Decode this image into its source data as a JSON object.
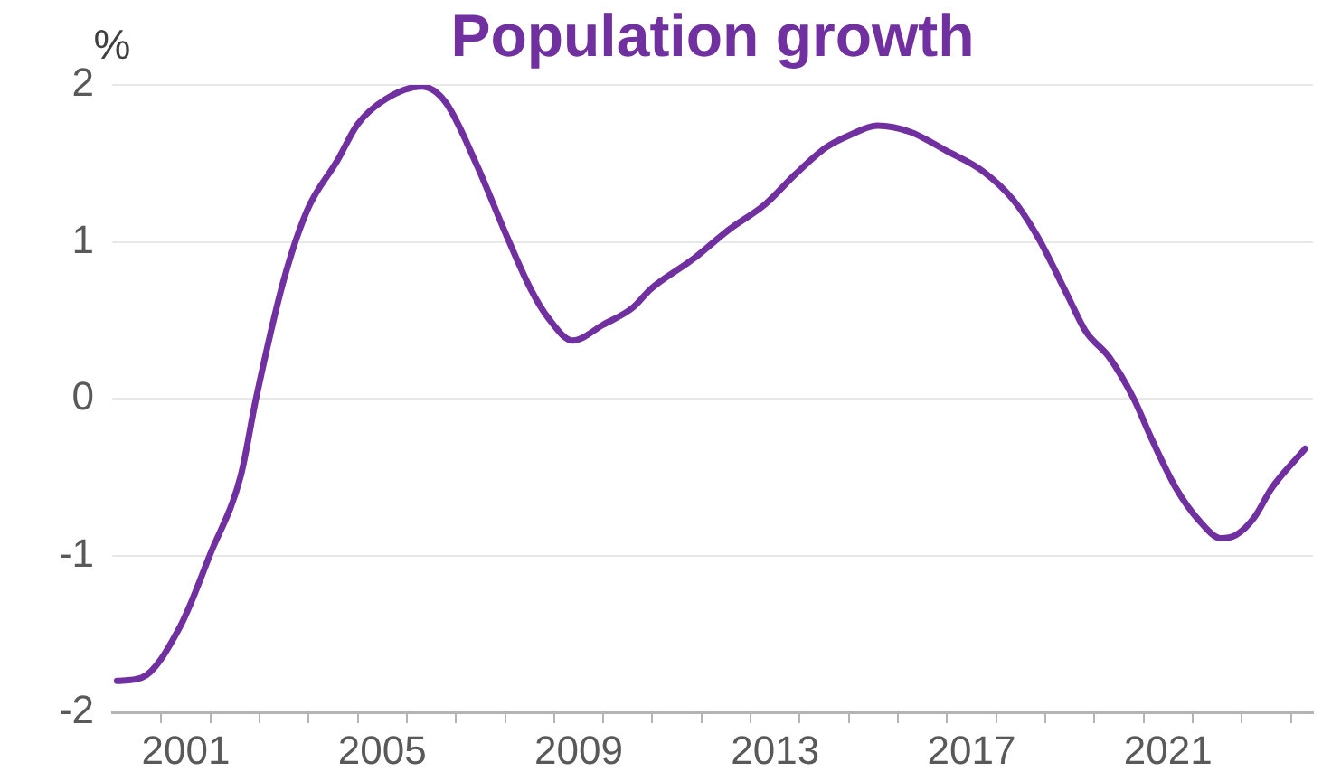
{
  "chart_data": {
    "type": "line",
    "title": "Population growth",
    "ylabel": "%",
    "x": [
      2000.1,
      2000.6,
      2001.39,
      2002.0,
      2002.62,
      2002.93,
      2003.48,
      2003.97,
      2004.59,
      2005.0,
      2005.57,
      2006.3,
      2006.79,
      2007.41,
      2008.03,
      2008.52,
      2008.89,
      2009.38,
      2009.99,
      2010.6,
      2010.97,
      2011.83,
      2012.57,
      2013.3,
      2013.91,
      2014.53,
      2015.02,
      2015.58,
      2016.25,
      2016.99,
      2017.73,
      2018.34,
      2018.83,
      2019.45,
      2019.82,
      2020.31,
      2020.8,
      2021.17,
      2021.66,
      2022.14,
      2022.57,
      2022.88,
      2023.25,
      2023.61,
      2024.29
    ],
    "series": [
      {
        "color": "#7030a0",
        "values": [
          -1.8,
          -1.78,
          -1.45,
          -0.99,
          -0.49,
          0.0,
          0.74,
          1.2,
          1.52,
          1.75,
          1.91,
          1.99,
          1.89,
          1.5,
          1.04,
          0.7,
          0.51,
          0.37,
          0.47,
          0.58,
          0.7,
          0.89,
          1.08,
          1.24,
          1.43,
          1.6,
          1.68,
          1.74,
          1.7,
          1.58,
          1.45,
          1.27,
          1.04,
          0.66,
          0.43,
          0.26,
          0.0,
          -0.26,
          -0.57,
          -0.78,
          -0.89,
          -0.87,
          -0.76,
          -0.57,
          -0.32
        ]
      }
    ],
    "xlim": [
      2000,
      2024.45
    ],
    "xticks": [
      {
        "value": 2001,
        "label": null
      },
      {
        "value": 2001.5,
        "label": "2001"
      },
      {
        "value": 2002,
        "label": null
      },
      {
        "value": 2003,
        "label": null
      },
      {
        "value": 2004,
        "label": null
      },
      {
        "value": 2005,
        "label": null
      },
      {
        "value": 2005.5,
        "label": "2005"
      },
      {
        "value": 2006,
        "label": null
      },
      {
        "value": 2007,
        "label": null
      },
      {
        "value": 2008,
        "label": null
      },
      {
        "value": 2009,
        "label": null
      },
      {
        "value": 2009.5,
        "label": "2009"
      },
      {
        "value": 2010,
        "label": null
      },
      {
        "value": 2011,
        "label": null
      },
      {
        "value": 2012,
        "label": null
      },
      {
        "value": 2013,
        "label": null
      },
      {
        "value": 2013.5,
        "label": "2013"
      },
      {
        "value": 2014,
        "label": null
      },
      {
        "value": 2015,
        "label": null
      },
      {
        "value": 2016,
        "label": null
      },
      {
        "value": 2017,
        "label": null
      },
      {
        "value": 2017.5,
        "label": "2017"
      },
      {
        "value": 2018,
        "label": null
      },
      {
        "value": 2019,
        "label": null
      },
      {
        "value": 2020,
        "label": null
      },
      {
        "value": 2021,
        "label": null
      },
      {
        "value": 2021.5,
        "label": "2021"
      },
      {
        "value": 2022,
        "label": null
      },
      {
        "value": 2023,
        "label": null
      },
      {
        "value": 2024,
        "label": null
      }
    ],
    "ylim": [
      -2,
      2
    ],
    "yticks": [
      -2,
      -1,
      0,
      1,
      2
    ],
    "grid": "y"
  }
}
